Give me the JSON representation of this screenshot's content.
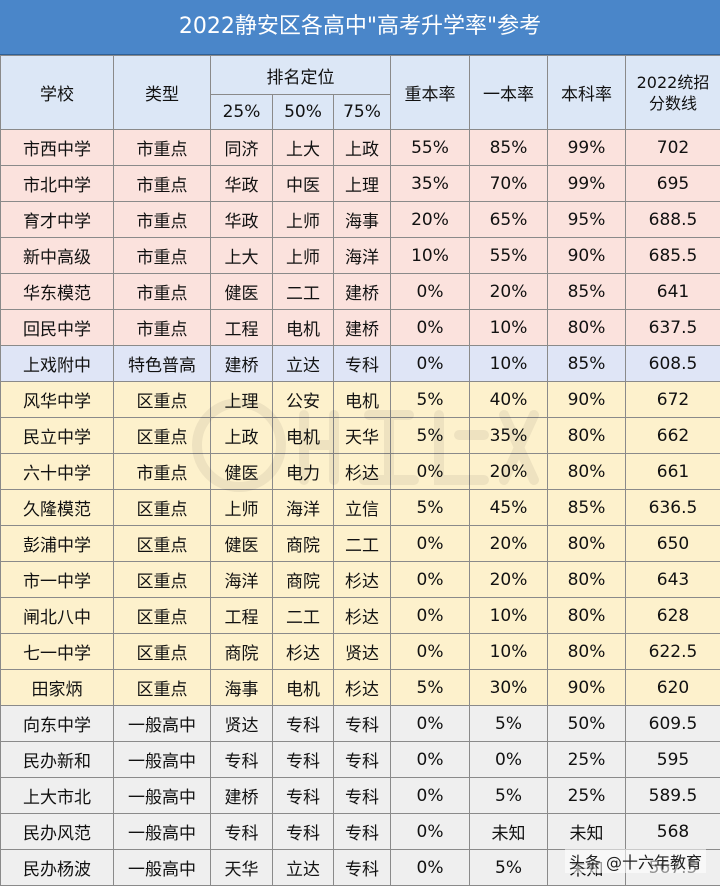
{
  "title": "2022静安区各高中\"高考升学率\"参考",
  "headers": {
    "school": "学校",
    "type": "类型",
    "rank_group": "排名定位",
    "p25": "25%",
    "p50": "50%",
    "p75": "75%",
    "key_rate": "重本率",
    "tier1_rate": "一本率",
    "undergrad_rate": "本科率",
    "cutoff_line1": "2022统招",
    "cutoff_line2": "分数线"
  },
  "rows": [
    {
      "school": "市西中学",
      "type": "市重点",
      "p25": "同济",
      "p50": "上大",
      "p75": "上政",
      "key": "55%",
      "tier1": "85%",
      "ug": "99%",
      "score": "702",
      "group": "red"
    },
    {
      "school": "市北中学",
      "type": "市重点",
      "p25": "华政",
      "p50": "中医",
      "p75": "上理",
      "key": "35%",
      "tier1": "70%",
      "ug": "99%",
      "score": "695",
      "group": "red"
    },
    {
      "school": "育才中学",
      "type": "市重点",
      "p25": "华政",
      "p50": "上师",
      "p75": "海事",
      "key": "20%",
      "tier1": "65%",
      "ug": "95%",
      "score": "688.5",
      "group": "red"
    },
    {
      "school": "新中高级",
      "type": "市重点",
      "p25": "上大",
      "p50": "上师",
      "p75": "海洋",
      "key": "10%",
      "tier1": "55%",
      "ug": "90%",
      "score": "685.5",
      "group": "red"
    },
    {
      "school": "华东模范",
      "type": "市重点",
      "p25": "健医",
      "p50": "二工",
      "p75": "建桥",
      "key": "0%",
      "tier1": "20%",
      "ug": "85%",
      "score": "641",
      "group": "red"
    },
    {
      "school": "回民中学",
      "type": "市重点",
      "p25": "工程",
      "p50": "电机",
      "p75": "建桥",
      "key": "0%",
      "tier1": "10%",
      "ug": "80%",
      "score": "637.5",
      "group": "red"
    },
    {
      "school": "上戏附中",
      "type": "特色普高",
      "p25": "建桥",
      "p50": "立达",
      "p75": "专科",
      "key": "0%",
      "tier1": "10%",
      "ug": "85%",
      "score": "608.5",
      "group": "blue"
    },
    {
      "school": "风华中学",
      "type": "区重点",
      "p25": "上理",
      "p50": "公安",
      "p75": "电机",
      "key": "5%",
      "tier1": "40%",
      "ug": "90%",
      "score": "672",
      "group": "yellow"
    },
    {
      "school": "民立中学",
      "type": "区重点",
      "p25": "上政",
      "p50": "电机",
      "p75": "天华",
      "key": "5%",
      "tier1": "35%",
      "ug": "80%",
      "score": "662",
      "group": "yellow"
    },
    {
      "school": "六十中学",
      "type": "市重点",
      "p25": "健医",
      "p50": "电力",
      "p75": "杉达",
      "key": "0%",
      "tier1": "20%",
      "ug": "80%",
      "score": "661",
      "group": "yellow"
    },
    {
      "school": "久隆模范",
      "type": "区重点",
      "p25": "上师",
      "p50": "海洋",
      "p75": "立信",
      "key": "5%",
      "tier1": "45%",
      "ug": "85%",
      "score": "636.5",
      "group": "yellow"
    },
    {
      "school": "彭浦中学",
      "type": "区重点",
      "p25": "健医",
      "p50": "商院",
      "p75": "二工",
      "key": "0%",
      "tier1": "20%",
      "ug": "80%",
      "score": "650",
      "group": "yellow"
    },
    {
      "school": "市一中学",
      "type": "区重点",
      "p25": "海洋",
      "p50": "商院",
      "p75": "杉达",
      "key": "0%",
      "tier1": "20%",
      "ug": "80%",
      "score": "643",
      "group": "yellow"
    },
    {
      "school": "闸北八中",
      "type": "区重点",
      "p25": "工程",
      "p50": "二工",
      "p75": "杉达",
      "key": "0%",
      "tier1": "10%",
      "ug": "80%",
      "score": "628",
      "group": "yellow"
    },
    {
      "school": "七一中学",
      "type": "区重点",
      "p25": "商院",
      "p50": "杉达",
      "p75": "贤达",
      "key": "0%",
      "tier1": "10%",
      "ug": "80%",
      "score": "622.5",
      "group": "yellow"
    },
    {
      "school": "田家炳",
      "type": "区重点",
      "p25": "海事",
      "p50": "电机",
      "p75": "杉达",
      "key": "5%",
      "tier1": "30%",
      "ug": "90%",
      "score": "620",
      "group": "yellow"
    },
    {
      "school": "向东中学",
      "type": "一般高中",
      "p25": "贤达",
      "p50": "专科",
      "p75": "专科",
      "key": "0%",
      "tier1": "5%",
      "ug": "50%",
      "score": "609.5",
      "group": "grey"
    },
    {
      "school": "民办新和",
      "type": "一般高中",
      "p25": "专科",
      "p50": "专科",
      "p75": "专科",
      "key": "0%",
      "tier1": "0%",
      "ug": "25%",
      "score": "595",
      "group": "grey"
    },
    {
      "school": "上大市北",
      "type": "一般高中",
      "p25": "建桥",
      "p50": "专科",
      "p75": "专科",
      "key": "0%",
      "tier1": "5%",
      "ug": "25%",
      "score": "589.5",
      "group": "grey"
    },
    {
      "school": "民办风范",
      "type": "一般高中",
      "p25": "专科",
      "p50": "专科",
      "p75": "专科",
      "key": "0%",
      "tier1": "未知",
      "ug": "未知",
      "score": "568",
      "group": "grey"
    },
    {
      "school": "民办杨波",
      "type": "一般高中",
      "p25": "天华",
      "p50": "立达",
      "p75": "专科",
      "key": "0%",
      "tier1": "5%",
      "ug": "未知",
      "score": "567.5",
      "group": "grey"
    }
  ],
  "credit": "头条 @十六年教育",
  "colors": {
    "title_bg": "#4a86c9",
    "header_bg": "#dce7f6",
    "red_group": "#fbe2dd",
    "blue_group": "#dfe5f6",
    "yellow_group": "#fdf1cc",
    "grey_group": "#efefef"
  }
}
